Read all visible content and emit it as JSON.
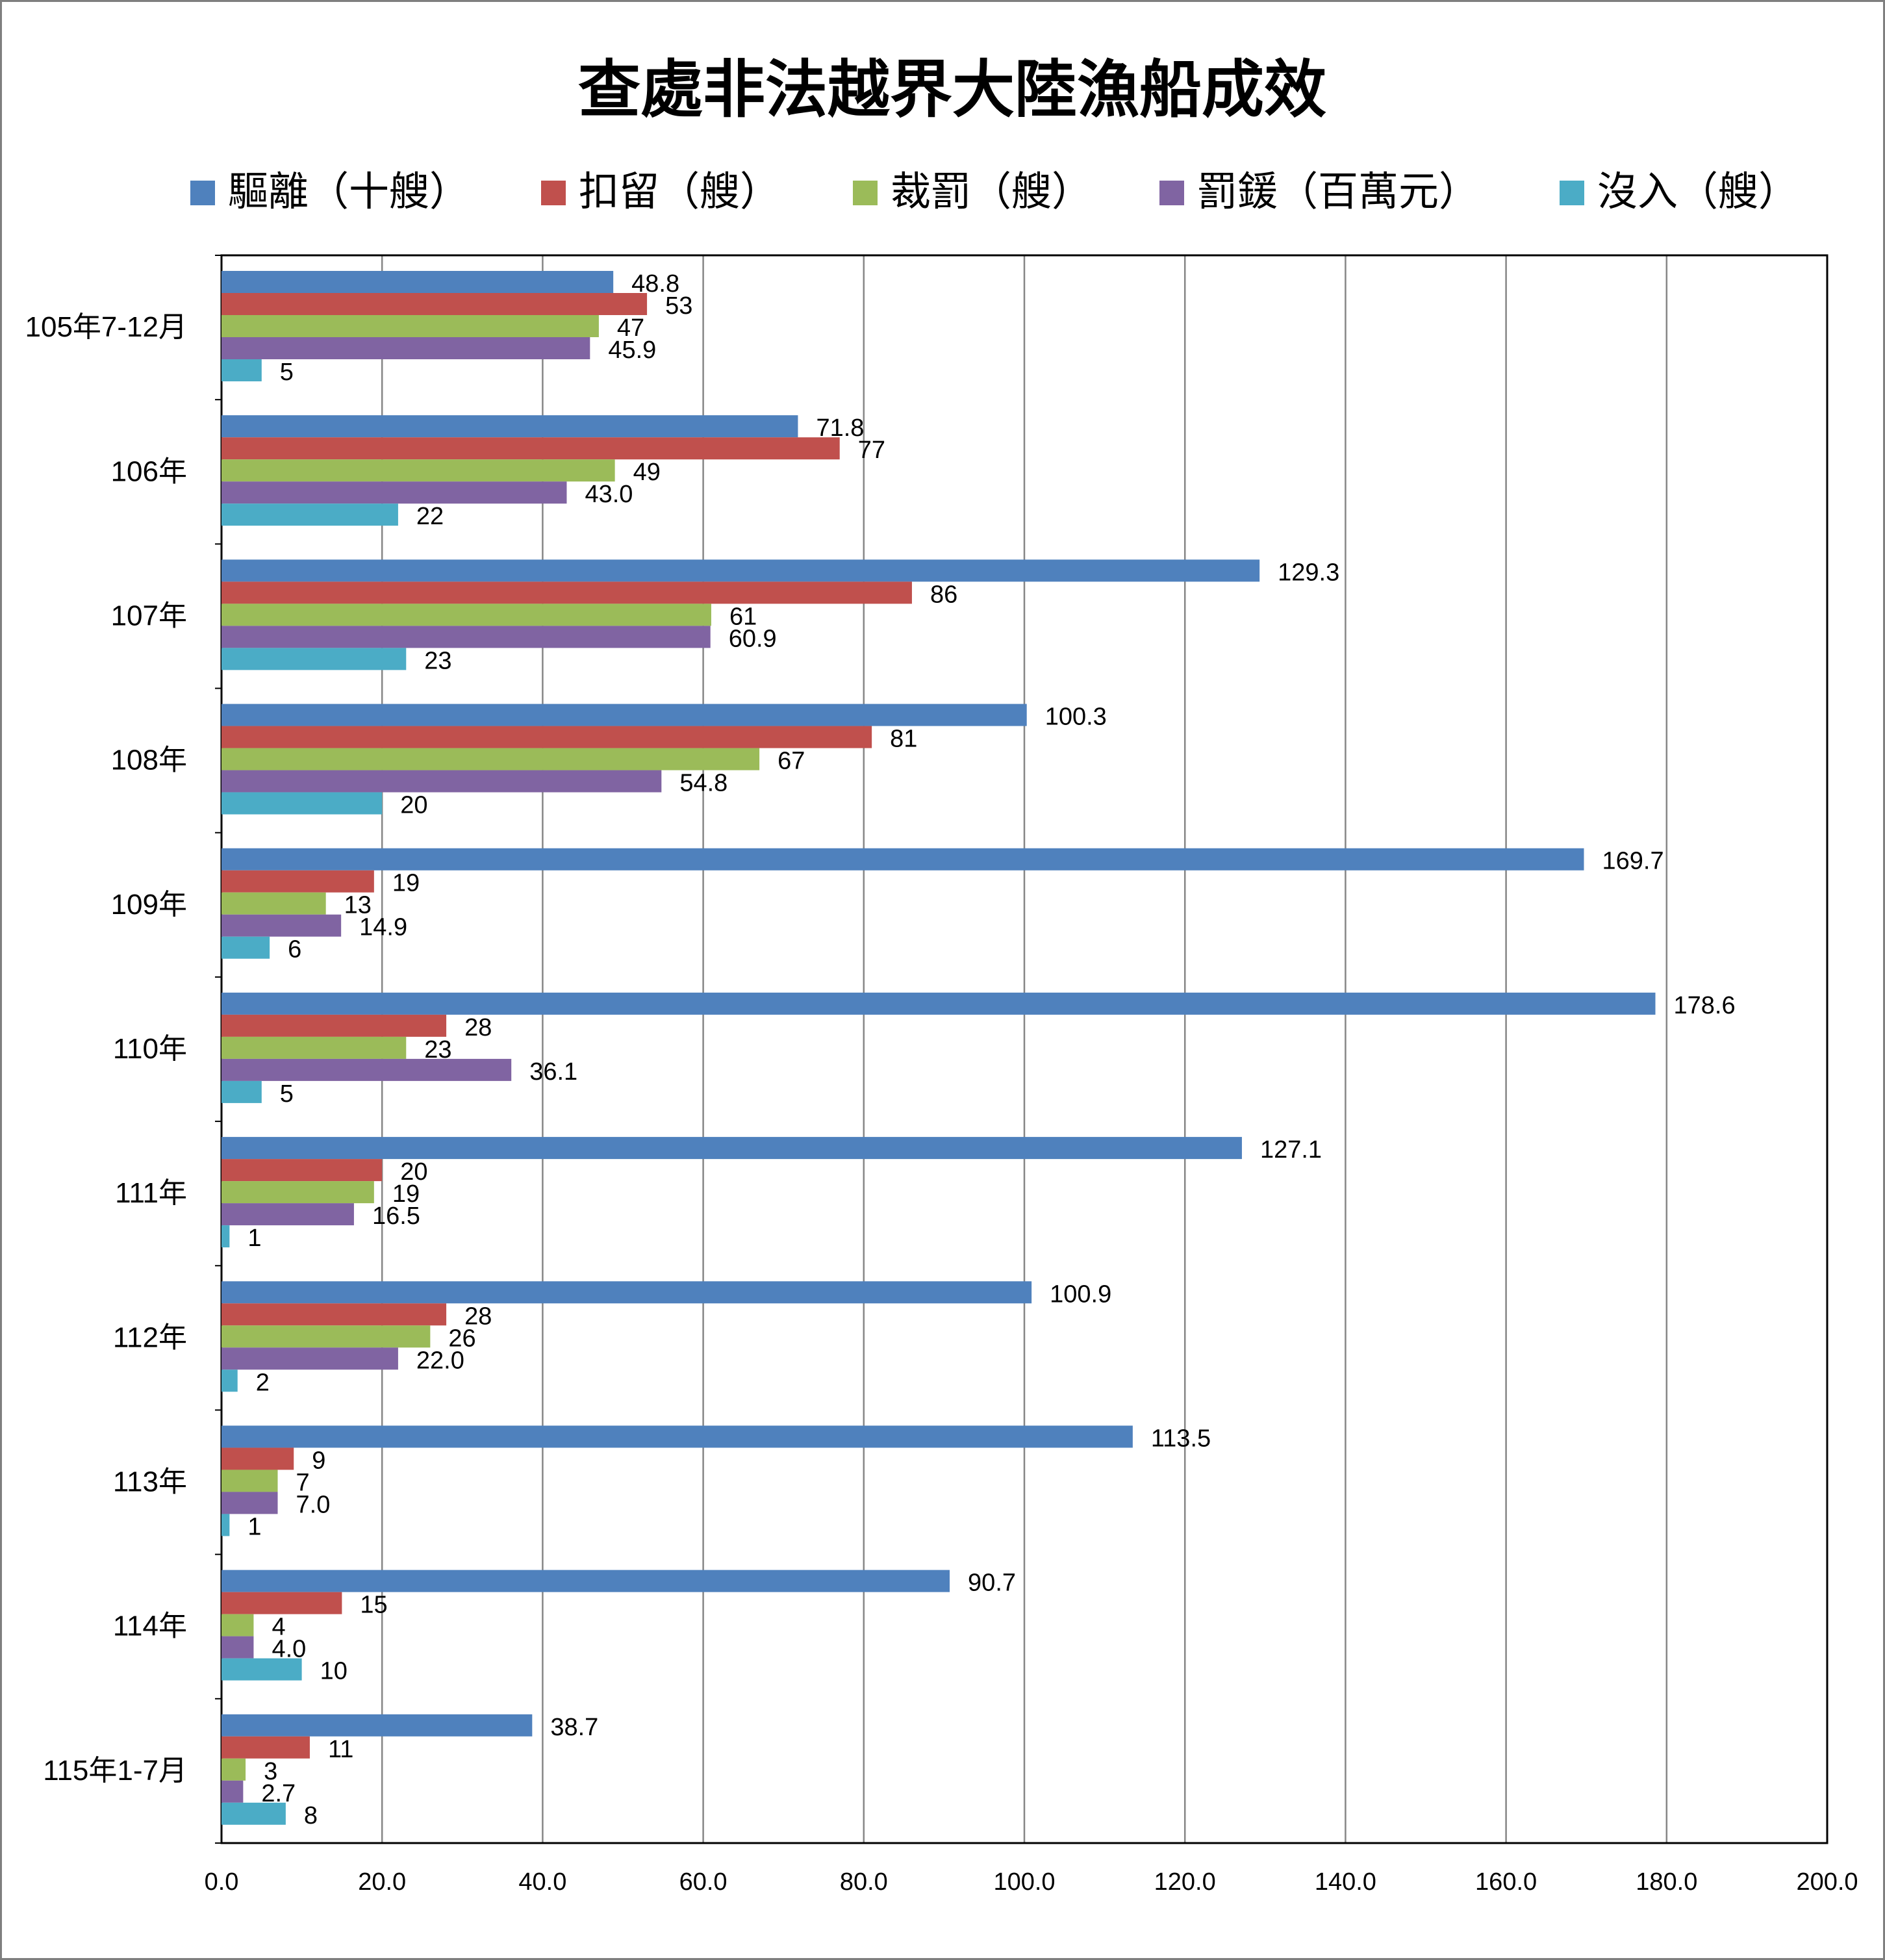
{
  "chart_data": {
    "type": "bar",
    "orientation": "horizontal",
    "title": "查處非法越界大陸漁船成效",
    "categories": [
      "105年7-12月",
      "106年",
      "107年",
      "108年",
      "109年",
      "110年",
      "111年",
      "112年",
      "113年",
      "114年",
      "115年1-7月"
    ],
    "series": [
      {
        "name": "驅離（十艘）",
        "color": "#4f81bd",
        "values": [
          48.8,
          71.8,
          129.3,
          100.3,
          169.7,
          178.6,
          127.1,
          100.9,
          113.5,
          90.7,
          38.7
        ],
        "labels": [
          "48.8",
          "71.8",
          "129.3",
          "100.3",
          "169.7",
          "178.6",
          "127.1",
          "100.9",
          "113.5",
          "90.7",
          "38.7"
        ]
      },
      {
        "name": "扣留（艘）",
        "color": "#c0504d",
        "values": [
          53,
          77,
          86,
          81,
          19,
          28,
          20,
          28,
          9,
          15,
          11
        ],
        "labels": [
          "53",
          "77",
          "86",
          "81",
          "19",
          "28",
          "20",
          "28",
          "9",
          "15",
          "11"
        ]
      },
      {
        "name": "裁罰（艘）",
        "color": "#9bbb59",
        "values": [
          47,
          49,
          61,
          67,
          13,
          23,
          19,
          26,
          7,
          4,
          3
        ],
        "labels": [
          "47",
          "49",
          "61",
          "67",
          "13",
          "23",
          "19",
          "26",
          "7",
          "4",
          "3"
        ]
      },
      {
        "name": "罰鍰（百萬元）",
        "color": "#8064a2",
        "values": [
          45.9,
          43.0,
          60.9,
          54.8,
          14.9,
          36.1,
          16.5,
          22.0,
          7.0,
          4.0,
          2.7
        ],
        "labels": [
          "45.9",
          "43.0",
          "60.9",
          "54.8",
          "14.9",
          "36.1",
          "16.5",
          "22.0",
          "7.0",
          "4.0",
          "2.7"
        ]
      },
      {
        "name": "沒入（艘）",
        "color": "#4bacc6",
        "values": [
          5,
          22,
          23,
          20,
          6,
          5,
          1,
          2,
          1,
          10,
          8
        ],
        "labels": [
          "5",
          "22",
          "23",
          "20",
          "6",
          "5",
          "1",
          "2",
          "1",
          "10",
          "8"
        ]
      }
    ],
    "xlim": [
      0,
      200
    ],
    "xticks": [
      "0.0",
      "20.0",
      "40.0",
      "60.0",
      "80.0",
      "100.0",
      "120.0",
      "140.0",
      "160.0",
      "180.0",
      "200.0"
    ],
    "grid": "vertical",
    "legend_position": "top"
  }
}
